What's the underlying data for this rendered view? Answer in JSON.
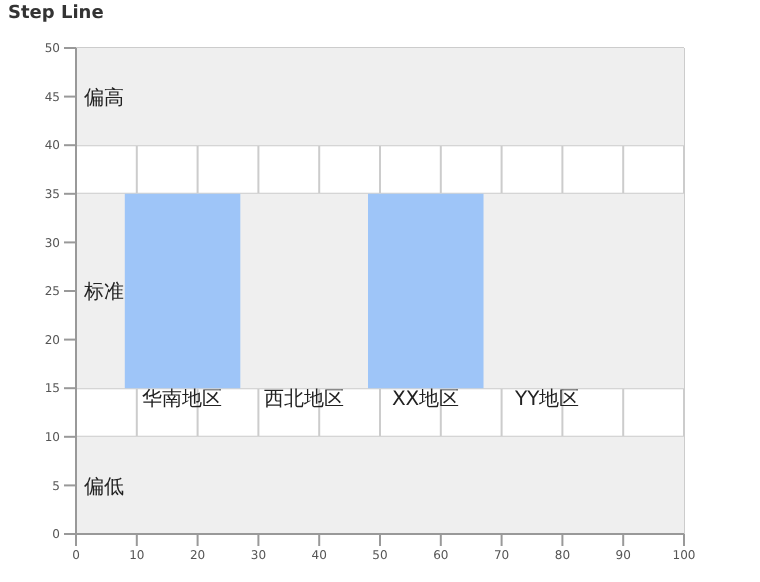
{
  "chart_data": {
    "type": "bar",
    "title": "Step Line",
    "x": [
      17.5,
      57.5
    ],
    "values": [
      20,
      20
    ],
    "base": [
      15,
      15
    ],
    "color": "#9ec5f8",
    "xlim": [
      0,
      100
    ],
    "xticks": [
      0,
      10,
      20,
      30,
      40,
      50,
      60,
      70,
      80,
      90,
      100
    ],
    "ylim": [
      0,
      50
    ],
    "yticks": [
      0,
      5,
      10,
      15,
      20,
      25,
      30,
      35,
      40,
      45,
      50
    ],
    "grid": true,
    "bands": [
      {
        "axis": "y",
        "from": 0,
        "to": 10,
        "label": "偏低",
        "color": "#efefef"
      },
      {
        "axis": "y",
        "from": 15,
        "to": 35,
        "label": "标准",
        "color": "#efefef"
      },
      {
        "axis": "y",
        "from": 40,
        "to": 50,
        "label": "偏高",
        "color": "#efefef"
      }
    ],
    "annotations": [
      {
        "text": "华南地区",
        "x": 17.5,
        "y": 14
      },
      {
        "text": "西北地区",
        "x": 37.5,
        "y": 14
      },
      {
        "text": "XX地区",
        "x": 57.5,
        "y": 14
      },
      {
        "text": "YY地区",
        "x": 77.5,
        "y": 14
      }
    ]
  }
}
